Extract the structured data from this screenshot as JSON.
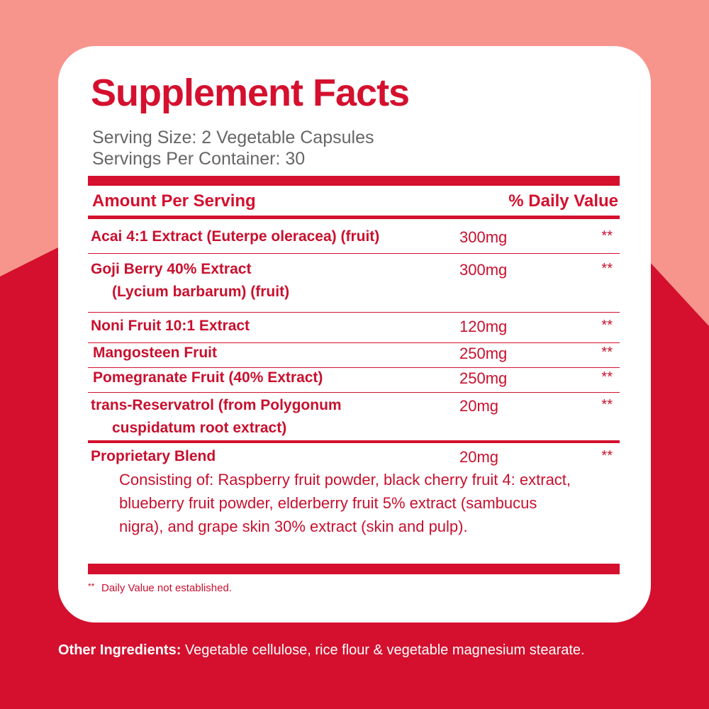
{
  "title": "Supplement Facts",
  "serving_size": "Serving Size: 2 Vegetable Capsules",
  "servings_per_container": "Servings Per Container: 30",
  "table": {
    "header": [
      "Amount Per Serving",
      "% Daily Value"
    ],
    "rows": [
      {
        "name": [
          "Acai 4:1 Extract (Euterpe oleracea) (fruit)"
        ],
        "amount": "300mg",
        "dv": "**"
      },
      {
        "name": [
          "Goji Berry 40% Extract",
          "(Lycium barbarum) (fruit)"
        ],
        "amount": "300mg",
        "dv": "**"
      },
      {
        "name": [
          "Noni Fruit 10:1 Extract"
        ],
        "amount": "120mg",
        "dv": "**"
      },
      {
        "name": [
          "Mangosteen Fruit"
        ],
        "amount": "250mg",
        "dv": "**"
      },
      {
        "name": [
          "Pomegranate Fruit (40% Extract)"
        ],
        "amount": "250mg",
        "dv": "**"
      },
      {
        "name": [
          "trans-Reservatrol (from Polygonum",
          "cuspidatum root extract)"
        ],
        "amount": "20mg",
        "dv": "**"
      },
      {
        "name": [
          "Proprietary Blend"
        ],
        "amount": "20mg",
        "dv": "**"
      }
    ]
  },
  "blend_description": [
    "Consisting of: Raspberry fruit powder, black cherry fruit 4: extract,",
    "blueberry fruit powder, elderberry fruit 5% extract (sambucus",
    "nigra), and grape skin 30% extract (skin and pulp)."
  ],
  "footnote": {
    "marker": "**",
    "text": "Daily Value not established."
  },
  "other_ingredients": {
    "label": "Other Ingredients:",
    "text": "Vegetable cellulose, rice flour & vegetable magnesium stearate."
  }
}
